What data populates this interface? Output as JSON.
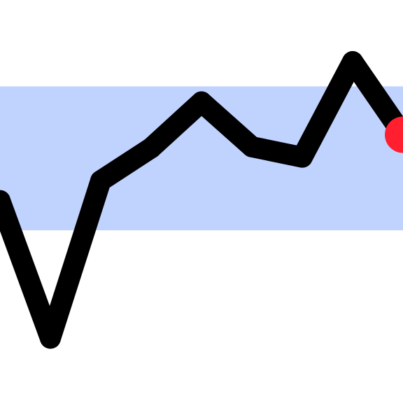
{
  "chart_data": {
    "type": "line",
    "x": [
      0,
      1,
      2,
      3,
      4,
      5,
      6,
      7,
      8
    ],
    "series": [
      {
        "values": [
          50.3,
          2.5,
          57.2,
          68.6,
          84.6,
          69.0,
          65.4,
          98.6,
          73.2
        ],
        "color": "#000000"
      }
    ],
    "reference_band": {
      "ymin": 40,
      "ymax": 90,
      "color": "#c0d2fe"
    },
    "last_point_marker": {
      "color": "#ff1f2e"
    },
    "xlim": [
      0,
      8
    ],
    "ylim": [
      -20,
      120
    ],
    "grid": false,
    "axes_visible": false,
    "title": "",
    "xlabel": "",
    "ylabel": ""
  }
}
